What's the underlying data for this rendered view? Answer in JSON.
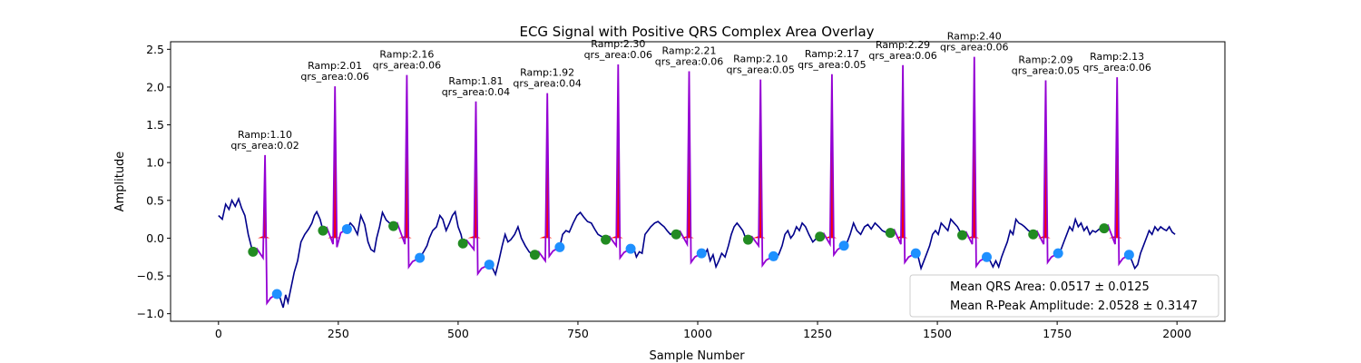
{
  "chart_data": {
    "type": "line",
    "title": "ECG Signal with Positive QRS Complex Area Overlay",
    "xlabel": "Sample Number",
    "ylabel": "Amplitude",
    "xlim": [
      -100,
      2100
    ],
    "ylim": [
      -1.1,
      2.6
    ],
    "xticks": [
      0,
      250,
      500,
      750,
      1000,
      1250,
      1500,
      1750,
      2000
    ],
    "yticks": [
      -1.0,
      -0.5,
      0.0,
      0.5,
      1.0,
      1.5,
      2.0,
      2.5
    ],
    "xtick_labels": [
      "0",
      "250",
      "500",
      "750",
      "1000",
      "1250",
      "1500",
      "1750",
      "2000"
    ],
    "ytick_labels": [
      "−1.0",
      "−0.5",
      "0.0",
      "0.5",
      "1.0",
      "1.5",
      "2.0",
      "2.5"
    ],
    "grid": false,
    "legend_position": "lower-right",
    "legend": [
      "Mean QRS Area: 0.0517 ± 0.0125",
      "Mean R-Peak Amplitude: 2.0528 ± 0.3147"
    ],
    "colors": {
      "signal": "#00008b",
      "qrs_segment": "#9400d3",
      "qrs_area_fill": "#ff0000",
      "onset_marker": "#228b22",
      "offset_marker": "#1e90ff"
    },
    "beats": [
      {
        "r_sample": 97,
        "r_amp": 1.1,
        "onset": [
          72,
          -0.18
        ],
        "offset": [
          122,
          -0.74
        ],
        "label_line1": "Ramp:1.10",
        "label_line2": "qrs_area:0.02"
      },
      {
        "r_sample": 243,
        "r_amp": 2.01,
        "onset": [
          218,
          0.1
        ],
        "offset": [
          268,
          0.12
        ],
        "label_line1": "Ramp:2.01",
        "label_line2": "qrs_area:0.06"
      },
      {
        "r_sample": 393,
        "r_amp": 2.16,
        "onset": [
          365,
          0.16
        ],
        "offset": [
          420,
          -0.26
        ],
        "label_line1": "Ramp:2.16",
        "label_line2": "qrs_area:0.06"
      },
      {
        "r_sample": 537,
        "r_amp": 1.81,
        "onset": [
          510,
          -0.07
        ],
        "offset": [
          565,
          -0.35
        ],
        "label_line1": "Ramp:1.81",
        "label_line2": "qrs_area:0.04"
      },
      {
        "r_sample": 686,
        "r_amp": 1.92,
        "onset": [
          660,
          -0.22
        ],
        "offset": [
          712,
          -0.12
        ],
        "label_line1": "Ramp:1.92",
        "label_line2": "qrs_area:0.04"
      },
      {
        "r_sample": 834,
        "r_amp": 2.3,
        "onset": [
          808,
          -0.02
        ],
        "offset": [
          860,
          -0.14
        ],
        "label_line1": "Ramp:2.30",
        "label_line2": "qrs_area:0.06"
      },
      {
        "r_sample": 982,
        "r_amp": 2.21,
        "onset": [
          955,
          0.05
        ],
        "offset": [
          1008,
          -0.2
        ],
        "label_line1": "Ramp:2.21",
        "label_line2": "qrs_area:0.06"
      },
      {
        "r_sample": 1131,
        "r_amp": 2.1,
        "onset": [
          1105,
          -0.02
        ],
        "offset": [
          1158,
          -0.24
        ],
        "label_line1": "Ramp:2.10",
        "label_line2": "qrs_area:0.05"
      },
      {
        "r_sample": 1280,
        "r_amp": 2.17,
        "onset": [
          1255,
          0.02
        ],
        "offset": [
          1305,
          -0.1
        ],
        "label_line1": "Ramp:2.17",
        "label_line2": "qrs_area:0.05"
      },
      {
        "r_sample": 1428,
        "r_amp": 2.29,
        "onset": [
          1402,
          0.07
        ],
        "offset": [
          1455,
          -0.2
        ],
        "label_line1": "Ramp:2.29",
        "label_line2": "qrs_area:0.06"
      },
      {
        "r_sample": 1577,
        "r_amp": 2.4,
        "onset": [
          1552,
          0.04
        ],
        "offset": [
          1603,
          -0.25
        ],
        "label_line1": "Ramp:2.40",
        "label_line2": "qrs_area:0.06"
      },
      {
        "r_sample": 1726,
        "r_amp": 2.09,
        "onset": [
          1700,
          0.05
        ],
        "offset": [
          1752,
          -0.2
        ],
        "label_line1": "Ramp:2.09",
        "label_line2": "qrs_area:0.05"
      },
      {
        "r_sample": 1875,
        "r_amp": 2.13,
        "onset": [
          1848,
          0.13
        ],
        "offset": [
          1900,
          -0.22
        ],
        "label_line1": "Ramp:2.13",
        "label_line2": "qrs_area:0.06"
      }
    ],
    "baseline_points": [
      [
        0,
        0.3
      ],
      [
        8,
        0.25
      ],
      [
        15,
        0.45
      ],
      [
        22,
        0.38
      ],
      [
        28,
        0.5
      ],
      [
        35,
        0.42
      ],
      [
        42,
        0.52
      ],
      [
        48,
        0.4
      ],
      [
        55,
        0.3
      ],
      [
        62,
        0.05
      ],
      [
        70,
        -0.15
      ],
      [
        128,
        -0.78
      ],
      [
        135,
        -0.92
      ],
      [
        140,
        -0.75
      ],
      [
        145,
        -0.85
      ],
      [
        150,
        -0.7
      ],
      [
        158,
        -0.45
      ],
      [
        165,
        -0.3
      ],
      [
        172,
        -0.05
      ],
      [
        180,
        0.05
      ],
      [
        188,
        0.12
      ],
      [
        195,
        0.2
      ],
      [
        200,
        0.3
      ],
      [
        205,
        0.35
      ],
      [
        212,
        0.25
      ],
      [
        275,
        0.2
      ],
      [
        282,
        0.15
      ],
      [
        290,
        0.05
      ],
      [
        297,
        0.3
      ],
      [
        305,
        0.18
      ],
      [
        312,
        -0.05
      ],
      [
        318,
        -0.15
      ],
      [
        325,
        -0.18
      ],
      [
        330,
        0.0
      ],
      [
        336,
        0.15
      ],
      [
        342,
        0.34
      ],
      [
        350,
        0.24
      ],
      [
        357,
        0.2
      ],
      [
        428,
        -0.18
      ],
      [
        435,
        -0.1
      ],
      [
        440,
        0.0
      ],
      [
        447,
        0.1
      ],
      [
        455,
        0.15
      ],
      [
        462,
        0.3
      ],
      [
        468,
        0.25
      ],
      [
        475,
        0.1
      ],
      [
        482,
        0.2
      ],
      [
        488,
        0.3
      ],
      [
        494,
        0.35
      ],
      [
        500,
        0.15
      ],
      [
        506,
        0.05
      ],
      [
        572,
        -0.4
      ],
      [
        578,
        -0.48
      ],
      [
        585,
        -0.3
      ],
      [
        592,
        -0.1
      ],
      [
        598,
        0.05
      ],
      [
        604,
        -0.05
      ],
      [
        610,
        -0.02
      ],
      [
        618,
        0.05
      ],
      [
        625,
        0.15
      ],
      [
        632,
        0.0
      ],
      [
        640,
        -0.1
      ],
      [
        648,
        -0.18
      ],
      [
        655,
        -0.22
      ],
      [
        718,
        0.05
      ],
      [
        725,
        0.1
      ],
      [
        732,
        0.08
      ],
      [
        740,
        0.2
      ],
      [
        748,
        0.3
      ],
      [
        755,
        0.34
      ],
      [
        762,
        0.28
      ],
      [
        770,
        0.22
      ],
      [
        778,
        0.2
      ],
      [
        785,
        0.12
      ],
      [
        792,
        0.05
      ],
      [
        800,
        0.02
      ],
      [
        866,
        -0.12
      ],
      [
        872,
        -0.25
      ],
      [
        878,
        -0.18
      ],
      [
        884,
        -0.2
      ],
      [
        890,
        0.05
      ],
      [
        896,
        0.1
      ],
      [
        902,
        0.15
      ],
      [
        910,
        0.2
      ],
      [
        917,
        0.22
      ],
      [
        924,
        0.18
      ],
      [
        930,
        0.15
      ],
      [
        936,
        0.1
      ],
      [
        943,
        0.05
      ],
      [
        950,
        0.08
      ],
      [
        1014,
        -0.22
      ],
      [
        1020,
        -0.15
      ],
      [
        1026,
        -0.3
      ],
      [
        1032,
        -0.22
      ],
      [
        1038,
        -0.38
      ],
      [
        1044,
        -0.3
      ],
      [
        1050,
        -0.2
      ],
      [
        1057,
        -0.25
      ],
      [
        1064,
        -0.1
      ],
      [
        1070,
        0.05
      ],
      [
        1076,
        0.15
      ],
      [
        1082,
        0.2
      ],
      [
        1088,
        0.15
      ],
      [
        1094,
        0.1
      ],
      [
        1100,
        0.0
      ],
      [
        1164,
        -0.28
      ],
      [
        1170,
        -0.2
      ],
      [
        1176,
        -0.1
      ],
      [
        1182,
        0.05
      ],
      [
        1188,
        0.1
      ],
      [
        1194,
        0.0
      ],
      [
        1200,
        0.05
      ],
      [
        1206,
        0.15
      ],
      [
        1212,
        0.1
      ],
      [
        1218,
        0.2
      ],
      [
        1225,
        0.15
      ],
      [
        1232,
        0.05
      ],
      [
        1240,
        -0.05
      ],
      [
        1248,
        0.0
      ],
      [
        1312,
        -0.05
      ],
      [
        1318,
        0.05
      ],
      [
        1325,
        0.2
      ],
      [
        1332,
        0.1
      ],
      [
        1340,
        0.05
      ],
      [
        1348,
        0.15
      ],
      [
        1355,
        0.18
      ],
      [
        1362,
        0.12
      ],
      [
        1370,
        0.2
      ],
      [
        1378,
        0.15
      ],
      [
        1385,
        0.1
      ],
      [
        1392,
        0.08
      ],
      [
        1460,
        -0.25
      ],
      [
        1466,
        -0.4
      ],
      [
        1472,
        -0.3
      ],
      [
        1478,
        -0.2
      ],
      [
        1484,
        -0.1
      ],
      [
        1490,
        0.05
      ],
      [
        1496,
        0.1
      ],
      [
        1502,
        0.05
      ],
      [
        1508,
        0.2
      ],
      [
        1515,
        0.15
      ],
      [
        1522,
        0.1
      ],
      [
        1528,
        0.25
      ],
      [
        1535,
        0.2
      ],
      [
        1542,
        0.15
      ],
      [
        1548,
        0.08
      ],
      [
        1610,
        -0.3
      ],
      [
        1616,
        -0.38
      ],
      [
        1622,
        -0.3
      ],
      [
        1628,
        -0.38
      ],
      [
        1634,
        -0.25
      ],
      [
        1640,
        -0.15
      ],
      [
        1646,
        -0.05
      ],
      [
        1652,
        0.1
      ],
      [
        1658,
        0.05
      ],
      [
        1664,
        0.25
      ],
      [
        1670,
        0.2
      ],
      [
        1676,
        0.18
      ],
      [
        1682,
        0.15
      ],
      [
        1690,
        0.1
      ],
      [
        1696,
        0.08
      ],
      [
        1758,
        -0.15
      ],
      [
        1764,
        -0.05
      ],
      [
        1770,
        0.05
      ],
      [
        1776,
        0.15
      ],
      [
        1782,
        0.1
      ],
      [
        1788,
        0.25
      ],
      [
        1794,
        0.15
      ],
      [
        1800,
        0.2
      ],
      [
        1806,
        0.1
      ],
      [
        1812,
        0.15
      ],
      [
        1818,
        0.05
      ],
      [
        1824,
        0.1
      ],
      [
        1830,
        0.08
      ],
      [
        1838,
        0.12
      ],
      [
        1844,
        0.15
      ],
      [
        1906,
        -0.3
      ],
      [
        1912,
        -0.4
      ],
      [
        1918,
        -0.35
      ],
      [
        1924,
        -0.2
      ],
      [
        1930,
        -0.1
      ],
      [
        1936,
        0.0
      ],
      [
        1942,
        0.1
      ],
      [
        1948,
        0.05
      ],
      [
        1954,
        0.15
      ],
      [
        1960,
        0.1
      ],
      [
        1966,
        0.15
      ],
      [
        1972,
        0.12
      ],
      [
        1978,
        0.1
      ],
      [
        1984,
        0.15
      ],
      [
        1990,
        0.08
      ],
      [
        1996,
        0.05
      ]
    ]
  }
}
